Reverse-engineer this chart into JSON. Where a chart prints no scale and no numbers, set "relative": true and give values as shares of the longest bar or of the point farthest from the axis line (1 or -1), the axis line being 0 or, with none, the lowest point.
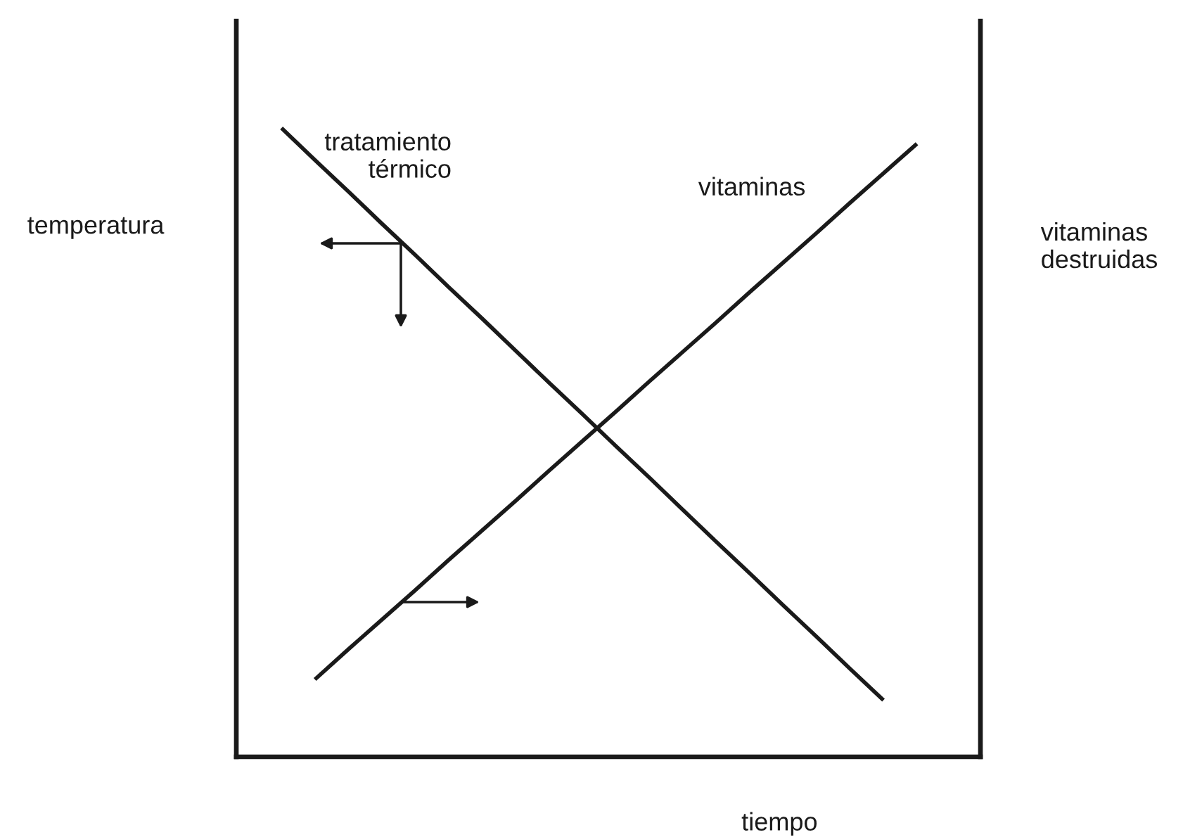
{
  "chart_data": {
    "type": "line",
    "relative": true,
    "xlabel": "tiempo",
    "ylabel": "temperatura",
    "y2label": "vitaminas destruidas",
    "categories": [
      null,
      null,
      null,
      null,
      null,
      null,
      null,
      null,
      null,
      null,
      null,
      null,
      null,
      null,
      null,
      null,
      null,
      null,
      null,
      null
    ],
    "series": [
      {
        "name": "tratamiento térmico",
        "color": "#1a1a1a",
        "values": [
          1.0,
          0.949,
          0.899,
          0.848,
          0.798,
          0.747,
          0.697,
          0.646,
          0.595,
          0.545,
          0.494,
          0.444,
          0.393,
          0.342,
          0.292,
          0.241,
          0.191,
          0.14,
          0.09,
          null
        ]
      },
      {
        "name": "vitaminas",
        "color": "#1a1a1a",
        "values": [
          null,
          0.123,
          0.171,
          0.218,
          0.265,
          0.313,
          0.36,
          0.407,
          0.455,
          0.502,
          0.549,
          0.597,
          0.644,
          0.691,
          0.739,
          0.786,
          0.833,
          0.881,
          0.928,
          0.975
        ]
      }
    ],
    "line_style": "solid"
  }
}
